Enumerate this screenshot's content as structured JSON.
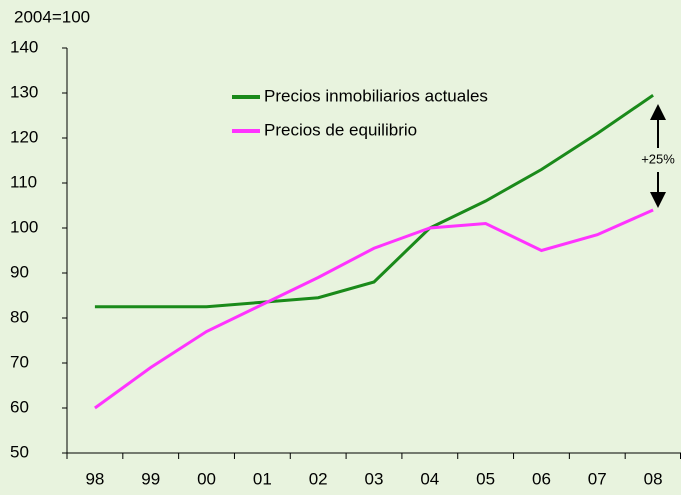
{
  "chart_data": {
    "type": "line",
    "y_axis_label": "2004=100",
    "categories": [
      "98",
      "99",
      "00",
      "01",
      "02",
      "03",
      "04",
      "05",
      "06",
      "07",
      "08"
    ],
    "series": [
      {
        "name": "Precios inmobiliarios actuales",
        "color": "#1a8a1a",
        "values": [
          82.5,
          82.5,
          82.5,
          83.5,
          84.5,
          88,
          100,
          106,
          113,
          121,
          129.5
        ]
      },
      {
        "name": "Precios de equilibrio",
        "color": "#ff33ff",
        "values": [
          60,
          69,
          77,
          83,
          89,
          95.5,
          100,
          101,
          95,
          98.5,
          104
        ]
      }
    ],
    "annotation": "+25%",
    "ylim": [
      50,
      140
    ],
    "yticks": [
      50,
      60,
      70,
      80,
      90,
      100,
      110,
      120,
      130,
      140
    ],
    "grid": false,
    "legend": "top"
  }
}
